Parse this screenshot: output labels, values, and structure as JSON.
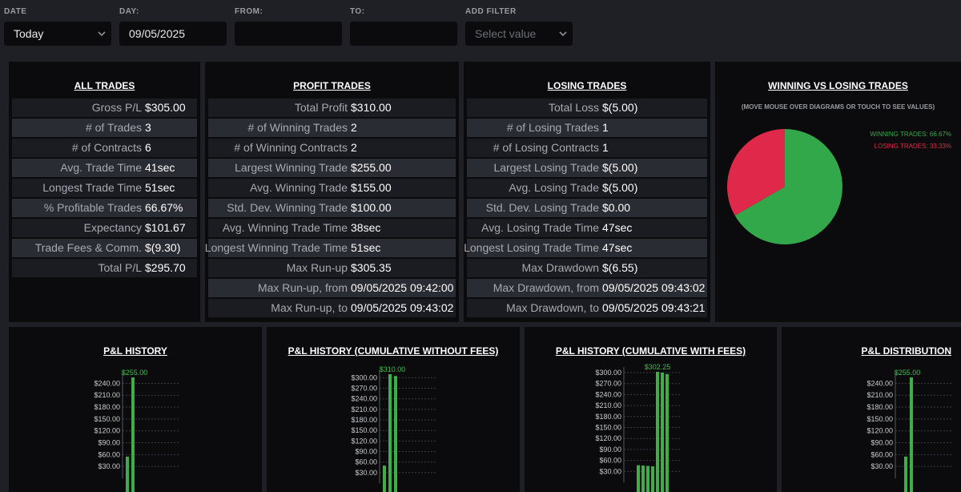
{
  "filters": {
    "date": {
      "label": "DATE",
      "value": "Today"
    },
    "day": {
      "label": "DAY:",
      "value": "09/05/2025"
    },
    "from": {
      "label": "FROM:",
      "value": ""
    },
    "to": {
      "label": "TO:",
      "value": ""
    },
    "add_filter": {
      "label": "ADD FILTER",
      "placeholder": "Select value"
    }
  },
  "all_trades": {
    "title": "ALL TRADES",
    "rows": [
      {
        "k": "Gross P/L",
        "v": "$305.00"
      },
      {
        "k": "# of Trades",
        "v": "3"
      },
      {
        "k": "# of Contracts",
        "v": "6"
      },
      {
        "k": "Avg. Trade Time",
        "v": "41sec"
      },
      {
        "k": "Longest Trade Time",
        "v": "51sec"
      },
      {
        "k": "% Profitable Trades",
        "v": "66.67%"
      },
      {
        "k": "Expectancy",
        "v": "$101.67"
      },
      {
        "k": "Trade Fees & Comm.",
        "v": "$(9.30)"
      },
      {
        "k": "Total P/L",
        "v": "$295.70"
      }
    ]
  },
  "profit_trades": {
    "title": "PROFIT TRADES",
    "rows": [
      {
        "k": "Total Profit",
        "v": "$310.00"
      },
      {
        "k": "# of Winning Trades",
        "v": "2"
      },
      {
        "k": "# of Winning Contracts",
        "v": "2"
      },
      {
        "k": "Largest Winning Trade",
        "v": "$255.00"
      },
      {
        "k": "Avg. Winning Trade",
        "v": "$155.00"
      },
      {
        "k": "Std. Dev. Winning Trade",
        "v": "$100.00"
      },
      {
        "k": "Avg. Winning Trade Time",
        "v": "38sec"
      },
      {
        "k": "Longest Winning Trade Time",
        "v": "51sec"
      },
      {
        "k": "Max Run-up",
        "v": "$305.35"
      },
      {
        "k": "Max Run-up, from",
        "v": "09/05/2025 09:42:00"
      },
      {
        "k": "Max Run-up, to",
        "v": "09/05/2025 09:43:02"
      }
    ]
  },
  "losing_trades": {
    "title": "LOSING TRADES",
    "rows": [
      {
        "k": "Total Loss",
        "v": "$(5.00)"
      },
      {
        "k": "# of Losing Trades",
        "v": "1"
      },
      {
        "k": "# of Losing Contracts",
        "v": "1"
      },
      {
        "k": "Largest Losing Trade",
        "v": "$(5.00)"
      },
      {
        "k": "Avg. Losing Trade",
        "v": "$(5.00)"
      },
      {
        "k": "Std. Dev. Losing Trade",
        "v": "$0.00"
      },
      {
        "k": "Avg. Losing Trade Time",
        "v": "47sec"
      },
      {
        "k": "Longest Losing Trade Time",
        "v": "47sec"
      },
      {
        "k": "Max Drawdown",
        "v": "$(6.55)"
      },
      {
        "k": "Max Drawdown, from",
        "v": "09/05/2025 09:43:02"
      },
      {
        "k": "Max Drawdown, to",
        "v": "09/05/2025 09:43:21"
      }
    ]
  },
  "win_vs_lose": {
    "title": "WINNING VS LOSING TRADES",
    "note": "(MOVE MOUSE OVER DIAGRAMS OR TOUCH TO SEE VALUES)",
    "win_label": "WINNING TRADES: 66.67%",
    "lose_label": "LOSING TRADES: 33.33%"
  },
  "colors": {
    "win": "#33a84a",
    "lose": "#e0284a",
    "bar": "#3fae49",
    "background": "#1f2026",
    "panel": "#0b0b0d"
  },
  "chart_data": [
    {
      "type": "pie",
      "title": "WINNING VS LOSING TRADES",
      "labels": [
        "WINNING TRADES",
        "LOSING TRADES"
      ],
      "values": [
        66.67,
        33.33
      ]
    },
    {
      "type": "bar",
      "title": "P&L HISTORY",
      "yticks": [
        "$30.00",
        "$60.00",
        "$90.00",
        "$120.00",
        "$150.00",
        "$180.00",
        "$210.00",
        "$240.00"
      ],
      "ylim": [
        0,
        255
      ],
      "values": [
        55,
        255
      ],
      "peak_label": "$255.00"
    },
    {
      "type": "bar",
      "title": "P&L HISTORY (CUMULATIVE WITHOUT FEES)",
      "yticks": [
        "$30.00",
        "$60.00",
        "$90.00",
        "$120.00",
        "$150.00",
        "$180.00",
        "$210.00",
        "$240.00",
        "$270.00",
        "$300.00"
      ],
      "ylim": [
        0,
        310
      ],
      "values": [
        50,
        310,
        305
      ],
      "peak_label": "$310.00"
    },
    {
      "type": "bar",
      "title": "P&L HISTORY (CUMULATIVE WITH FEES)",
      "yticks": [
        "$30.00",
        "$60.00",
        "$90.00",
        "$120.00",
        "$150.00",
        "$180.00",
        "$210.00",
        "$240.00",
        "$270.00",
        "$300.00"
      ],
      "ylim": [
        0,
        302.25
      ],
      "values": [
        47,
        46,
        45,
        44,
        302.25,
        300,
        296
      ],
      "peak_label": "$302.25"
    },
    {
      "type": "bar",
      "title": "P&L DISTRIBUTION",
      "yticks": [
        "$30.00",
        "$60.00",
        "$90.00",
        "$120.00",
        "$150.00",
        "$180.00",
        "$210.00",
        "$240.00"
      ],
      "ylim": [
        0,
        255
      ],
      "values": [
        55,
        255
      ],
      "peak_label": "$255.00"
    }
  ]
}
